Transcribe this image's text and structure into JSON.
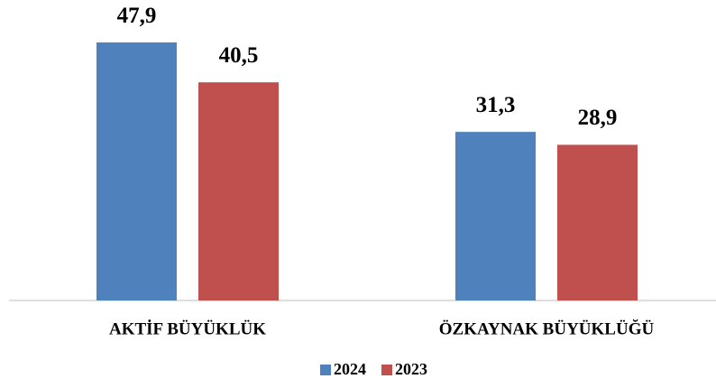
{
  "chart_data": {
    "type": "bar",
    "categories": [
      "AKTİF BÜYÜKLÜK",
      "ÖZKAYNAK BÜYÜKLÜĞÜ"
    ],
    "series": [
      {
        "name": "2024",
        "color": "#4f81bd",
        "values": [
          47.9,
          31.3
        ],
        "value_labels": [
          "47,9",
          "31,3"
        ]
      },
      {
        "name": "2023",
        "color": "#c0504d",
        "values": [
          40.5,
          28.9
        ],
        "value_labels": [
          "40,5",
          "28,9"
        ]
      }
    ],
    "legend": "bottom"
  }
}
